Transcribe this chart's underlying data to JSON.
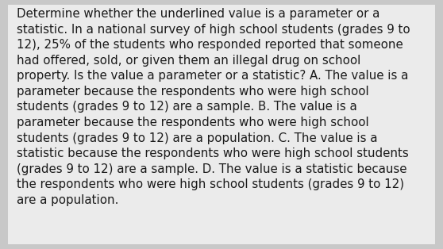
{
  "background_color": "#c8c8c8",
  "text_background_color": "#ebebeb",
  "text_color": "#1a1a1a",
  "font_size": 10.8,
  "font_family": "DejaVu Sans",
  "figsize": [
    5.58,
    3.14
  ],
  "dpi": 100,
  "lines": [
    "Determine whether the underlined value is a parameter or a",
    "statistic. In a national survey of high school students (grades 9 to",
    "12), 25% of the students who responded reported that someone",
    "had offered, sold, or given them an illegal drug on school",
    "property. Is the value a parameter or a statistic? A. The value is a",
    "parameter because the respondents who were high school",
    "students (grades 9 to 12) are a sample. B. The value is a",
    "parameter because the respondents who were high school",
    "students (grades 9 to 12) are a population. C. The value is a",
    "statistic because the respondents who were high school students",
    "(grades 9 to 12) are a sample. D. The value is a statistic because",
    "the respondents who were high school students (grades 9 to 12)",
    "are a population."
  ]
}
